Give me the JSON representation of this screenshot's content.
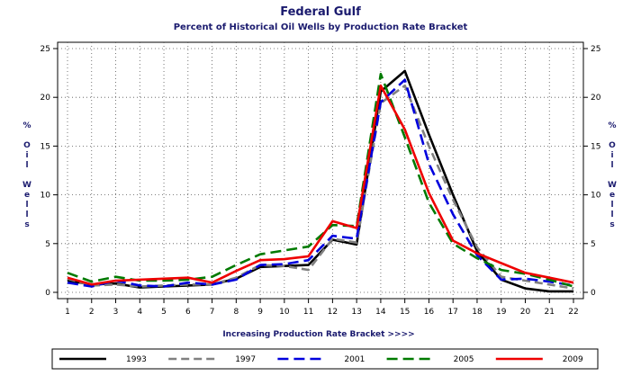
{
  "chart_data": {
    "type": "line",
    "title": "Federal Gulf",
    "subtitle": "Percent of Historical Oil Wells by Production Rate Bracket",
    "xlabel": "Increasing Production Rate Bracket >>>>",
    "ylabel": "% Oil Wells",
    "ylabel_chars": [
      "%",
      "",
      "O",
      "i",
      "l",
      "",
      "W",
      "e",
      "l",
      "l",
      "s"
    ],
    "x": [
      1,
      2,
      3,
      4,
      5,
      6,
      7,
      8,
      9,
      10,
      11,
      12,
      13,
      14,
      15,
      16,
      17,
      18,
      19,
      20,
      21,
      22
    ],
    "xlim": [
      1,
      22
    ],
    "ylim": [
      0,
      25
    ],
    "yticks": [
      0,
      5,
      10,
      15,
      20,
      25
    ],
    "grid": true,
    "legend_position": "bottom",
    "series": [
      {
        "name": "1993",
        "color": "#000000",
        "dash": "solid",
        "values": [
          1.2,
          0.8,
          0.9,
          0.5,
          0.6,
          0.7,
          0.8,
          1.4,
          2.6,
          2.7,
          2.8,
          5.4,
          4.9,
          20.6,
          22.7,
          16.2,
          10.0,
          4.2,
          1.3,
          0.4,
          0.1,
          0.1
        ]
      },
      {
        "name": "1997",
        "color": "#808080",
        "dash": "dash",
        "values": [
          1.4,
          0.7,
          0.8,
          0.6,
          0.7,
          0.8,
          0.8,
          1.5,
          2.8,
          2.7,
          2.3,
          5.5,
          5.1,
          19.4,
          21.2,
          15.0,
          9.5,
          4.6,
          1.6,
          1.2,
          0.8,
          0.4
        ]
      },
      {
        "name": "2001",
        "color": "#0000dd",
        "dash": "longdash",
        "values": [
          1.0,
          0.6,
          1.2,
          0.7,
          0.6,
          1.0,
          0.8,
          1.3,
          2.8,
          2.9,
          3.3,
          5.8,
          5.5,
          19.5,
          21.8,
          13.2,
          8.0,
          3.8,
          1.3,
          1.4,
          1.1,
          0.7
        ]
      },
      {
        "name": "2005",
        "color": "#007a00",
        "dash": "longdash",
        "values": [
          2.0,
          1.1,
          1.6,
          1.2,
          1.2,
          1.3,
          1.6,
          2.8,
          3.9,
          4.3,
          4.7,
          6.9,
          6.8,
          22.4,
          15.9,
          9.2,
          5.0,
          3.5,
          2.3,
          1.9,
          1.3,
          0.6
        ]
      },
      {
        "name": "2009",
        "color": "#ee0000",
        "dash": "solid",
        "values": [
          1.5,
          0.8,
          1.2,
          1.3,
          1.4,
          1.5,
          1.0,
          2.2,
          3.3,
          3.4,
          3.7,
          7.3,
          6.6,
          21.2,
          16.7,
          10.2,
          5.3,
          4.0,
          3.0,
          2.0,
          1.5,
          1.0
        ]
      }
    ]
  }
}
